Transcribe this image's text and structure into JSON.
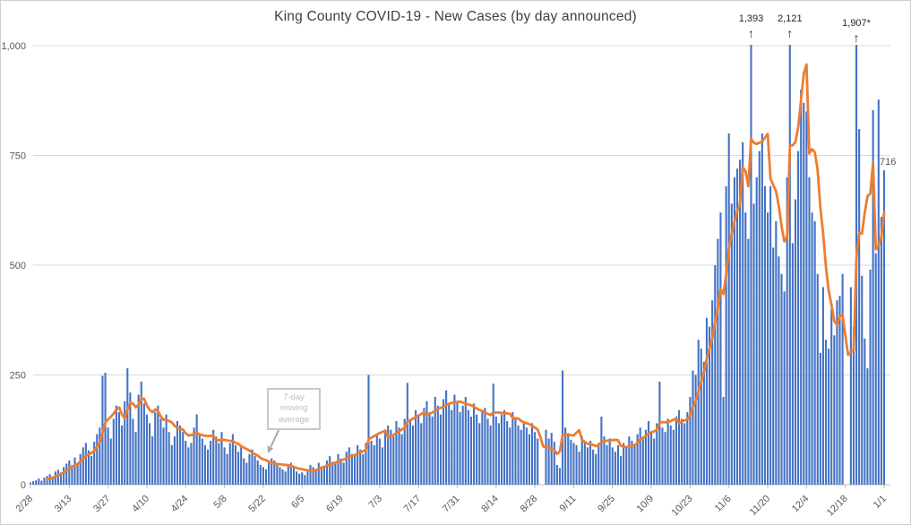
{
  "title": "King County COVID-19 - New Cases (by day announced)",
  "callout": {
    "text": "7-day moving average"
  },
  "last_point_label": "716",
  "colors": {
    "bar": "#4472C4",
    "line": "#ED7D31",
    "gridline": "#D9D9D9",
    "axis": "#BFBFBF",
    "tick_label": "#595959",
    "title": "#404040",
    "annotation_text": "#262626",
    "data_label": "#595959",
    "callout_border": "#C8C8C8",
    "callout_text": "#BDBDBD",
    "callout_arrow": "#A6A6A6",
    "background": "#FFFFFF"
  },
  "chart_data": {
    "type": "bar",
    "title": "King County COVID-19 - New Cases (by day announced)",
    "xlabel": "",
    "ylabel": "",
    "ylim": [
      0,
      1000
    ],
    "grid": "horizontal",
    "legend": "none",
    "x_tick_labels": [
      "2/28",
      "3/13",
      "3/27",
      "4/10",
      "4/24",
      "5/8",
      "5/22",
      "6/5",
      "6/19",
      "7/3",
      "7/17",
      "7/31",
      "8/14",
      "8/28",
      "9/11",
      "9/25",
      "10/9",
      "10/23",
      "11/6",
      "11/20",
      "12/4",
      "12/18",
      "1/1"
    ],
    "x_tick_interval_days": 14,
    "y_ticks": [
      {
        "label": "0",
        "value": 0
      },
      {
        "label": "250",
        "value": 250
      },
      {
        "label": "500",
        "value": 500
      },
      {
        "label": "750",
        "value": 750
      },
      {
        "label": "1,000",
        "value": 1000
      }
    ],
    "series": [
      {
        "name": "New cases by day announced",
        "type": "bar",
        "note": "daily values starting 2/28, one bar per day; bars above 1,000 are clipped at the top of the plot",
        "values": [
          5,
          8,
          10,
          14,
          9,
          16,
          20,
          24,
          18,
          30,
          34,
          28,
          40,
          48,
          55,
          45,
          62,
          50,
          70,
          85,
          95,
          78,
          65,
          98,
          115,
          130,
          248,
          255,
          130,
          105,
          150,
          180,
          165,
          135,
          190,
          265,
          210,
          150,
          120,
          205,
          235,
          185,
          160,
          140,
          110,
          165,
          180,
          150,
          130,
          160,
          120,
          90,
          110,
          145,
          135,
          120,
          100,
          85,
          95,
          130,
          160,
          115,
          105,
          90,
          80,
          100,
          125,
          110,
          95,
          120,
          85,
          70,
          95,
          115,
          90,
          75,
          85,
          60,
          50,
          70,
          80,
          65,
          55,
          45,
          40,
          35,
          50,
          60,
          55,
          45,
          40,
          35,
          30,
          45,
          50,
          38,
          30,
          25,
          28,
          22,
          35,
          45,
          40,
          35,
          50,
          42,
          38,
          55,
          65,
          52,
          48,
          70,
          60,
          50,
          75,
          85,
          70,
          65,
          90,
          80,
          70,
          95,
          250,
          100,
          90,
          115,
          105,
          85,
          120,
          135,
          125,
          110,
          145,
          130,
          115,
          150,
          232,
          145,
          135,
          170,
          155,
          140,
          175,
          190,
          165,
          155,
          200,
          180,
          160,
          195,
          215,
          185,
          170,
          205,
          190,
          165,
          180,
          200,
          170,
          155,
          185,
          160,
          140,
          165,
          175,
          150,
          135,
          230,
          155,
          140,
          160,
          170,
          145,
          130,
          165,
          150,
          135,
          125,
          145,
          130,
          115,
          140,
          120,
          105,
          0,
          0,
          125,
          105,
          118,
          98,
          45,
          38,
          260,
          130,
          115,
          102,
          95,
          90,
          75,
          110,
          95,
          85,
          100,
          80,
          70,
          95,
          155,
          110,
          90,
          105,
          85,
          75,
          90,
          65,
          95,
          85,
          110,
          100,
          90,
          115,
          130,
          110,
          125,
          145,
          120,
          105,
          140,
          235,
          130,
          120,
          150,
          135,
          125,
          155,
          170,
          150,
          140,
          165,
          200,
          260,
          250,
          330,
          310,
          280,
          380,
          360,
          420,
          500,
          560,
          620,
          200,
          680,
          800,
          640,
          700,
          720,
          740,
          780,
          620,
          560,
          1393,
          640,
          700,
          760,
          800,
          680,
          620,
          680,
          540,
          600,
          520,
          480,
          440,
          700,
          2121,
          550,
          650,
          760,
          900,
          870,
          850,
          700,
          620,
          600,
          480,
          300,
          450,
          330,
          310,
          400,
          340,
          420,
          430,
          480,
          0,
          0,
          450,
          360,
          1907,
          810,
          476,
          333,
          265,
          490,
          853,
          527,
          877,
          610,
          716
        ]
      },
      {
        "name": "7-day moving average",
        "type": "line",
        "derived": "7-day trailing mean of the daily bar values"
      }
    ],
    "annotations": [
      {
        "label": "1,393",
        "day": 260,
        "value": 1393,
        "dy": 0
      },
      {
        "label": "2,121",
        "day": 274,
        "value": 2121,
        "dy": 0
      },
      {
        "label": "1,907*",
        "day": 298,
        "value": 1907,
        "dy": 5
      }
    ],
    "last_point": {
      "label": "716",
      "value": 716
    }
  }
}
